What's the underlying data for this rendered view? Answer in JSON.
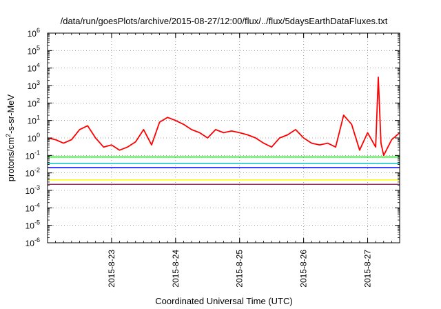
{
  "chart_data": {
    "type": "line",
    "title": "/data/run/goesPlots/archive/2015-08-27/12:00/flux/../flux/5daysEarthDataFluxes.txt",
    "xlabel": "Coordinated Universal Time (UTC)",
    "ylabel": "protons/cm2-s-sr-MeV",
    "ylabel_parts": {
      "pre": "protons/cm",
      "sup": "2",
      "post": "-s-sr-MeV"
    },
    "xlim": [
      "2015-08-22T00:00",
      "2015-08-27T12:00"
    ],
    "ylim": [
      1e-06,
      1000000.0
    ],
    "yscale": "log",
    "grid": "dotted at major ticks",
    "x_ticks": [
      {
        "value": "2015-08-23T00:00",
        "label": "2015-8-23"
      },
      {
        "value": "2015-08-24T00:00",
        "label": "2015-8-24"
      },
      {
        "value": "2015-08-25T00:00",
        "label": "2015-8-25"
      },
      {
        "value": "2015-08-26T00:00",
        "label": "2015-8-26"
      },
      {
        "value": "2015-08-27T00:00",
        "label": "2015-8-27"
      }
    ],
    "y_ticks": [
      {
        "value": 1e-06,
        "base": "10",
        "exp": "-6"
      },
      {
        "value": 1e-05,
        "base": "10",
        "exp": "-5"
      },
      {
        "value": 0.0001,
        "base": "10",
        "exp": "-4"
      },
      {
        "value": 0.001,
        "base": "10",
        "exp": "-3"
      },
      {
        "value": 0.01,
        "base": "10",
        "exp": "-2"
      },
      {
        "value": 0.1,
        "base": "10",
        "exp": "-1"
      },
      {
        "value": 1,
        "base": "10",
        "exp": "0"
      },
      {
        "value": 10.0,
        "base": "10",
        "exp": "1"
      },
      {
        "value": 100.0,
        "base": "10",
        "exp": "2"
      },
      {
        "value": 1000.0,
        "base": "10",
        "exp": "3"
      },
      {
        "value": 10000.0,
        "base": "10",
        "exp": "4"
      },
      {
        "value": 100000.0,
        "base": "10",
        "exp": "5"
      },
      {
        "value": 1000000.0,
        "base": "10",
        "exp": "6"
      }
    ],
    "series": [
      {
        "color": "#ff0000",
        "x": [
          "2015-08-22T00:00",
          "2015-08-22T03:00",
          "2015-08-22T06:00",
          "2015-08-22T09:00",
          "2015-08-22T12:00",
          "2015-08-22T15:00",
          "2015-08-22T18:00",
          "2015-08-22T21:00",
          "2015-08-23T00:00",
          "2015-08-23T03:00",
          "2015-08-23T06:00",
          "2015-08-23T09:00",
          "2015-08-23T12:00",
          "2015-08-23T15:00",
          "2015-08-23T18:00",
          "2015-08-23T21:00",
          "2015-08-24T00:00",
          "2015-08-24T03:00",
          "2015-08-24T06:00",
          "2015-08-24T09:00",
          "2015-08-24T12:00",
          "2015-08-24T15:00",
          "2015-08-24T18:00",
          "2015-08-24T21:00",
          "2015-08-25T00:00",
          "2015-08-25T03:00",
          "2015-08-25T06:00",
          "2015-08-25T09:00",
          "2015-08-25T12:00",
          "2015-08-25T15:00",
          "2015-08-25T18:00",
          "2015-08-25T21:00",
          "2015-08-26T00:00",
          "2015-08-26T03:00",
          "2015-08-26T06:00",
          "2015-08-26T09:00",
          "2015-08-26T12:00",
          "2015-08-26T15:00",
          "2015-08-26T18:00",
          "2015-08-26T21:00",
          "2015-08-27T00:00",
          "2015-08-27T03:00",
          "2015-08-27T04:00",
          "2015-08-27T05:00",
          "2015-08-27T06:00",
          "2015-08-27T09:00",
          "2015-08-27T12:00"
        ],
        "values": [
          1,
          0.8,
          0.5,
          0.8,
          3,
          5,
          1,
          0.3,
          0.4,
          0.2,
          0.3,
          0.6,
          3,
          0.4,
          8,
          15,
          10,
          6,
          3,
          2,
          1,
          3,
          2,
          2.5,
          2,
          1.5,
          1,
          0.5,
          0.3,
          1,
          1.5,
          3,
          1,
          0.5,
          0.4,
          0.5,
          0.3,
          20,
          6,
          0.2,
          2,
          0.3,
          3000,
          0.5,
          0.1,
          0.8,
          2
        ]
      },
      {
        "color": "#00ff00",
        "x": [
          "2015-08-22T00:00",
          "2015-08-23T00:00",
          "2015-08-24T00:00",
          "2015-08-25T00:00",
          "2015-08-26T00:00",
          "2015-08-27T00:00",
          "2015-08-27T12:00"
        ],
        "values": [
          0.08,
          0.08,
          0.08,
          0.08,
          0.08,
          0.08,
          0.08
        ]
      },
      {
        "color": "#00c0c0",
        "x": [
          "2015-08-22T00:00",
          "2015-08-23T00:00",
          "2015-08-24T00:00",
          "2015-08-25T00:00",
          "2015-08-26T00:00",
          "2015-08-27T00:00",
          "2015-08-27T12:00"
        ],
        "values": [
          0.035,
          0.035,
          0.035,
          0.035,
          0.035,
          0.035,
          0.035
        ]
      },
      {
        "color": "#0000ff",
        "x": [
          "2015-08-22T00:00",
          "2015-08-23T00:00",
          "2015-08-24T00:00",
          "2015-08-25T00:00",
          "2015-08-26T00:00",
          "2015-08-27T00:00",
          "2015-08-27T12:00"
        ],
        "values": [
          0.02,
          0.02,
          0.02,
          0.02,
          0.02,
          0.02,
          0.02
        ]
      },
      {
        "color": "#ffff00",
        "x": [
          "2015-08-22T00:00",
          "2015-08-23T00:00",
          "2015-08-24T00:00",
          "2015-08-25T00:00",
          "2015-08-26T00:00",
          "2015-08-27T00:00",
          "2015-08-27T12:00"
        ],
        "values": [
          0.004,
          0.004,
          0.004,
          0.004,
          0.004,
          0.004,
          0.004
        ]
      },
      {
        "color": "#993366",
        "x": [
          "2015-08-22T00:00",
          "2015-08-23T00:00",
          "2015-08-24T00:00",
          "2015-08-25T00:00",
          "2015-08-26T00:00",
          "2015-08-27T00:00",
          "2015-08-27T12:00"
        ],
        "values": [
          0.0022,
          0.0022,
          0.0022,
          0.0022,
          0.0022,
          0.0022,
          0.0022
        ]
      }
    ]
  }
}
